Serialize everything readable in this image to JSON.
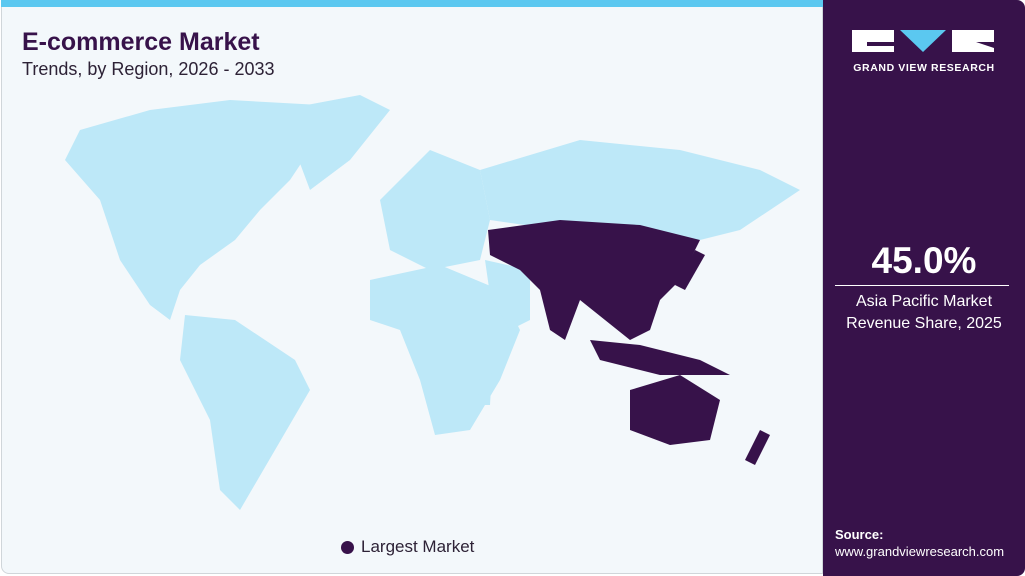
{
  "header": {
    "title": "E-commerce Market",
    "subtitle": "Trends, by Region, 2026 - 2033"
  },
  "map": {
    "highlighted_region": "Asia Pacific",
    "colors": {
      "highlight": "#37124a",
      "other": "#bde8f8",
      "accent": "#5bc8f0"
    }
  },
  "legend": {
    "label": "Largest Market"
  },
  "brand": {
    "name": "GRAND VIEW RESEARCH"
  },
  "stat": {
    "value": "45.0%",
    "label_line1": "Asia Pacific Market",
    "label_line2": "Revenue Share, 2025"
  },
  "source": {
    "label": "Source:",
    "url": "www.grandviewresearch.com"
  }
}
